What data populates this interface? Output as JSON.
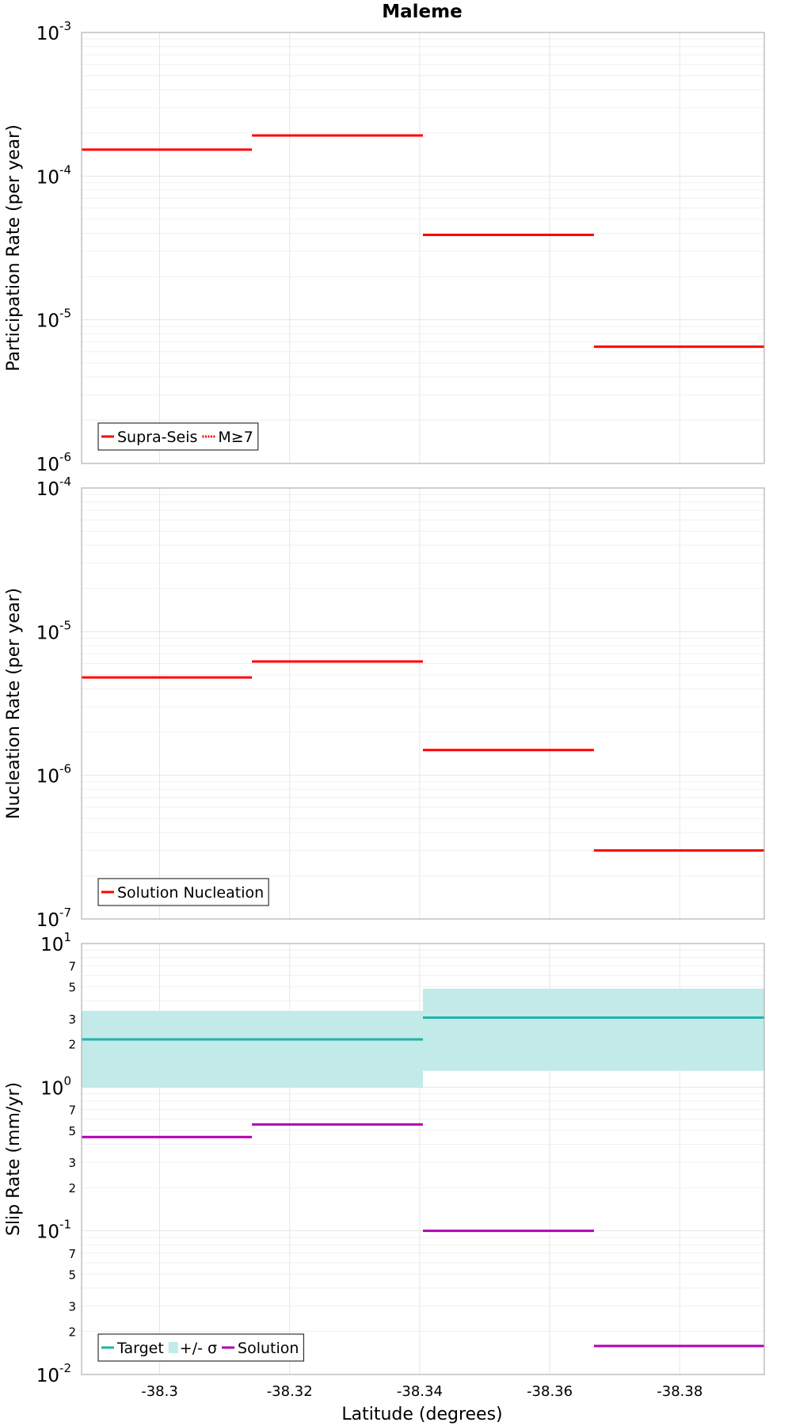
{
  "figure": {
    "title": "Maleme",
    "xlabel": "Latitude (degrees)",
    "x_tick_labels": [
      "-38.3",
      "-38.32",
      "-38.34",
      "-38.36",
      "-38.38"
    ]
  },
  "chart_data": [
    {
      "type": "line",
      "title": "Maleme",
      "xlabel": "",
      "ylabel": "Participation Rate (per year)",
      "yscale": "log",
      "xlim": [
        -38.288,
        -38.393
      ],
      "ylim": [
        1e-06,
        0.001
      ],
      "y_ticks": [
        {
          "value": 0.001,
          "base": "10",
          "exp": "-3"
        },
        {
          "value": 0.0001,
          "base": "10",
          "exp": "-4"
        },
        {
          "value": 1e-05,
          "base": "10",
          "exp": "-5"
        },
        {
          "value": 1e-06,
          "base": "10",
          "exp": "-6"
        }
      ],
      "grid": true,
      "legend": {
        "position": "bottom-left",
        "entries": [
          {
            "label": "Supra-Seis",
            "color": "#ff0000",
            "style": "solid"
          },
          {
            "label": "M≥7",
            "color": "#ff0000",
            "style": "dotted"
          }
        ]
      },
      "series": [
        {
          "name": "Supra-Seis",
          "color": "#ff0000",
          "segments": [
            {
              "x0": -38.288,
              "x1": -38.3142,
              "y": 0.000153
            },
            {
              "x0": -38.3142,
              "x1": -38.3405,
              "y": 0.000192
            },
            {
              "x0": -38.3405,
              "x1": -38.3668,
              "y": 3.9e-05
            },
            {
              "x0": -38.3668,
              "x1": -38.393,
              "y": 6.5e-06
            }
          ]
        }
      ]
    },
    {
      "type": "line",
      "xlabel": "",
      "ylabel": "Nucleation Rate (per year)",
      "yscale": "log",
      "xlim": [
        -38.288,
        -38.393
      ],
      "ylim": [
        1e-07,
        0.0001
      ],
      "y_ticks": [
        {
          "value": 0.0001,
          "base": "10",
          "exp": "-4"
        },
        {
          "value": 1e-05,
          "base": "10",
          "exp": "-5"
        },
        {
          "value": 1e-06,
          "base": "10",
          "exp": "-6"
        },
        {
          "value": 1e-07,
          "base": "10",
          "exp": "-7"
        }
      ],
      "grid": true,
      "legend": {
        "position": "bottom-left",
        "entries": [
          {
            "label": "Solution Nucleation",
            "color": "#ff0000",
            "style": "solid"
          }
        ]
      },
      "series": [
        {
          "name": "Solution Nucleation",
          "color": "#ff0000",
          "segments": [
            {
              "x0": -38.288,
              "x1": -38.3142,
              "y": 4.8e-06
            },
            {
              "x0": -38.3142,
              "x1": -38.3405,
              "y": 6.2e-06
            },
            {
              "x0": -38.3405,
              "x1": -38.3668,
              "y": 1.5e-06
            },
            {
              "x0": -38.3668,
              "x1": -38.393,
              "y": 3e-07
            }
          ]
        }
      ]
    },
    {
      "type": "line",
      "xlabel": "Latitude (degrees)",
      "ylabel": "Slip Rate (mm/yr)",
      "yscale": "log",
      "xlim": [
        -38.288,
        -38.393
      ],
      "ylim": [
        0.01,
        10
      ],
      "y_ticks": [
        {
          "value": 10,
          "base": "10",
          "exp": "1"
        },
        {
          "value": 1,
          "base": "10",
          "exp": "0"
        },
        {
          "value": 0.1,
          "base": "10",
          "exp": "-1"
        },
        {
          "value": 0.01,
          "base": "10",
          "exp": "-2"
        }
      ],
      "y_minor_tick_labels": [
        {
          "value": 7,
          "label": "7"
        },
        {
          "value": 5,
          "label": "5"
        },
        {
          "value": 3,
          "label": "3"
        },
        {
          "value": 2,
          "label": "2"
        },
        {
          "value": 0.7,
          "label": "7"
        },
        {
          "value": 0.5,
          "label": "5"
        },
        {
          "value": 0.3,
          "label": "3"
        },
        {
          "value": 0.2,
          "label": "2"
        },
        {
          "value": 0.07,
          "label": "7"
        },
        {
          "value": 0.05,
          "label": "5"
        },
        {
          "value": 0.03,
          "label": "3"
        },
        {
          "value": 0.02,
          "label": "2"
        }
      ],
      "grid": true,
      "legend": {
        "position": "bottom-left",
        "entries": [
          {
            "label": "Target",
            "color": "#20b2aa",
            "style": "solid"
          },
          {
            "label": "+/- σ",
            "color": "#c1eae8",
            "style": "fill"
          },
          {
            "label": "Solution",
            "color": "#b200b2",
            "style": "solid"
          }
        ]
      },
      "bands": [
        {
          "name": "+/- σ",
          "color": "#c1eae8",
          "segments": [
            {
              "x0": -38.288,
              "x1": -38.3405,
              "low": 0.99,
              "high": 3.4
            },
            {
              "x0": -38.3405,
              "x1": -38.393,
              "low": 1.3,
              "high": 4.85
            }
          ]
        }
      ],
      "series": [
        {
          "name": "Target",
          "color": "#20b2aa",
          "segments": [
            {
              "x0": -38.288,
              "x1": -38.3405,
              "y": 2.15
            },
            {
              "x0": -38.3405,
              "x1": -38.393,
              "y": 3.05
            }
          ]
        },
        {
          "name": "Solution",
          "color": "#b200b2",
          "segments": [
            {
              "x0": -38.288,
              "x1": -38.3142,
              "y": 0.45
            },
            {
              "x0": -38.3142,
              "x1": -38.3405,
              "y": 0.55
            },
            {
              "x0": -38.3405,
              "x1": -38.3668,
              "y": 0.1
            },
            {
              "x0": -38.3668,
              "x1": -38.393,
              "y": 0.0158
            }
          ]
        }
      ]
    }
  ]
}
